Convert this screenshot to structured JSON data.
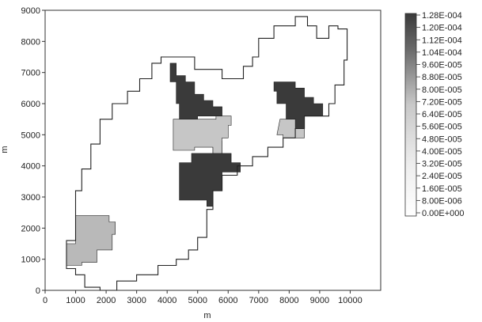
{
  "chart_data": {
    "type": "heatmap",
    "xlabel": "m",
    "ylabel": "m",
    "xlim": [
      0,
      11000
    ],
    "ylim": [
      0,
      9000
    ],
    "x_ticks": [
      "0",
      "1000",
      "2000",
      "3000",
      "4000",
      "5000",
      "6000",
      "7000",
      "8000",
      "9000",
      "10000"
    ],
    "y_ticks": [
      "0",
      "1000",
      "2000",
      "3000",
      "4000",
      "5000",
      "6000",
      "7000",
      "8000",
      "9000"
    ],
    "legend": {
      "placement": "right",
      "labels": [
        "1.28E-004",
        "1.20E-004",
        "1.12E-004",
        "1.04E-004",
        "9.60E-005",
        "8.80E-005",
        "8.00E-005",
        "7.20E-005",
        "6.40E-005",
        "5.60E-005",
        "4.80E-005",
        "4.00E-005",
        "3.20E-005",
        "2.40E-005",
        "1.60E-005",
        "8.00E-006",
        "0.00E+000"
      ]
    },
    "boundary": [
      [
        2100,
        0
      ],
      [
        2350,
        0
      ],
      [
        2350,
        300
      ],
      [
        3000,
        300
      ],
      [
        3000,
        500
      ],
      [
        3700,
        500
      ],
      [
        3700,
        800
      ],
      [
        4300,
        800
      ],
      [
        4300,
        1000
      ],
      [
        4700,
        1000
      ],
      [
        4700,
        1300
      ],
      [
        5000,
        1300
      ],
      [
        5000,
        1700
      ],
      [
        5300,
        1700
      ],
      [
        5300,
        2600
      ],
      [
        5500,
        2600
      ],
      [
        5500,
        3200
      ],
      [
        5800,
        3200
      ],
      [
        5800,
        3700
      ],
      [
        6300,
        3700
      ],
      [
        6300,
        4000
      ],
      [
        6800,
        4000
      ],
      [
        6800,
        4300
      ],
      [
        7300,
        4300
      ],
      [
        7300,
        4600
      ],
      [
        7800,
        4600
      ],
      [
        7800,
        4900
      ],
      [
        8200,
        4900
      ],
      [
        8200,
        5200
      ],
      [
        8500,
        5200
      ],
      [
        8500,
        5600
      ],
      [
        9300,
        5600
      ],
      [
        9300,
        6000
      ],
      [
        9500,
        6000
      ],
      [
        9500,
        6600
      ],
      [
        9800,
        6600
      ],
      [
        9800,
        7400
      ],
      [
        9900,
        7400
      ],
      [
        9900,
        8400
      ],
      [
        9600,
        8400
      ],
      [
        9600,
        8500
      ],
      [
        9300,
        8500
      ],
      [
        9300,
        8100
      ],
      [
        8900,
        8100
      ],
      [
        8900,
        8500
      ],
      [
        8600,
        8500
      ],
      [
        8600,
        8800
      ],
      [
        8200,
        8800
      ],
      [
        8200,
        8500
      ],
      [
        7500,
        8500
      ],
      [
        7500,
        8100
      ],
      [
        7000,
        8100
      ],
      [
        7000,
        7500
      ],
      [
        6800,
        7500
      ],
      [
        6800,
        7200
      ],
      [
        6500,
        7200
      ],
      [
        6500,
        6800
      ],
      [
        5800,
        6800
      ],
      [
        5800,
        7100
      ],
      [
        4900,
        7100
      ],
      [
        4900,
        7500
      ],
      [
        3800,
        7500
      ],
      [
        3800,
        7300
      ],
      [
        3500,
        7300
      ],
      [
        3500,
        6800
      ],
      [
        3100,
        6800
      ],
      [
        3100,
        6400
      ],
      [
        2700,
        6400
      ],
      [
        2700,
        6000
      ],
      [
        2200,
        6000
      ],
      [
        2200,
        5500
      ],
      [
        1800,
        5500
      ],
      [
        1800,
        4700
      ],
      [
        1500,
        4700
      ],
      [
        1500,
        3900
      ],
      [
        1200,
        3900
      ],
      [
        1200,
        3200
      ],
      [
        1000,
        3200
      ],
      [
        1000,
        1600
      ],
      [
        700,
        1600
      ],
      [
        700,
        700
      ],
      [
        1000,
        700
      ],
      [
        1000,
        500
      ],
      [
        1300,
        500
      ],
      [
        1300,
        100
      ],
      [
        1800,
        100
      ],
      [
        1800,
        0
      ]
    ],
    "regions": [
      {
        "value": 0.000128,
        "color": "#3a3a3a",
        "polygon": [
          [
            4100,
            7300
          ],
          [
            4300,
            7300
          ],
          [
            4300,
            6900
          ],
          [
            4600,
            6900
          ],
          [
            4600,
            6700
          ],
          [
            4900,
            6700
          ],
          [
            4900,
            6300
          ],
          [
            5200,
            6300
          ],
          [
            5200,
            6100
          ],
          [
            5500,
            6100
          ],
          [
            5500,
            5900
          ],
          [
            5800,
            5900
          ],
          [
            5800,
            5600
          ],
          [
            5000,
            5600
          ],
          [
            5000,
            5500
          ],
          [
            4400,
            5500
          ],
          [
            4400,
            6000
          ],
          [
            4300,
            6000
          ],
          [
            4300,
            6700
          ],
          [
            4100,
            6700
          ]
        ]
      },
      {
        "value": 0.000128,
        "color": "#3a3a3a",
        "polygon": [
          [
            4400,
            4100
          ],
          [
            4800,
            4100
          ],
          [
            4800,
            4400
          ],
          [
            5500,
            4400
          ],
          [
            5500,
            4800
          ],
          [
            5800,
            4800
          ],
          [
            5800,
            4400
          ],
          [
            6100,
            4400
          ],
          [
            6100,
            4100
          ],
          [
            6400,
            4100
          ],
          [
            6400,
            3800
          ],
          [
            5800,
            3800
          ],
          [
            5800,
            3200
          ],
          [
            5500,
            3200
          ],
          [
            5500,
            2700
          ],
          [
            5300,
            2700
          ],
          [
            5300,
            2900
          ],
          [
            4400,
            2900
          ]
        ]
      },
      {
        "value": 0.000128,
        "color": "#3a3a3a",
        "polygon": [
          [
            7500,
            6700
          ],
          [
            8200,
            6700
          ],
          [
            8200,
            6500
          ],
          [
            8500,
            6500
          ],
          [
            8500,
            6200
          ],
          [
            8800,
            6200
          ],
          [
            8800,
            6000
          ],
          [
            9100,
            6000
          ],
          [
            9100,
            5600
          ],
          [
            8500,
            5600
          ],
          [
            8500,
            5200
          ],
          [
            8200,
            5200
          ],
          [
            8200,
            5500
          ],
          [
            7900,
            5500
          ],
          [
            7900,
            6000
          ],
          [
            7600,
            6000
          ],
          [
            7600,
            6400
          ],
          [
            7500,
            6400
          ]
        ]
      },
      {
        "value": 6.4e-05,
        "color": "#c6c6c6",
        "polygon": [
          [
            4200,
            5500
          ],
          [
            5600,
            5500
          ],
          [
            5600,
            5600
          ],
          [
            6100,
            5600
          ],
          [
            6100,
            5300
          ],
          [
            6000,
            5300
          ],
          [
            6000,
            4900
          ],
          [
            5800,
            4900
          ],
          [
            5800,
            4400
          ],
          [
            5500,
            4400
          ],
          [
            5500,
            4600
          ],
          [
            4900,
            4600
          ],
          [
            4900,
            4500
          ],
          [
            4200,
            4500
          ]
        ]
      },
      {
        "value": 6.4e-05,
        "color": "#c6c6c6",
        "polygon": [
          [
            7700,
            5500
          ],
          [
            8200,
            5500
          ],
          [
            8200,
            5200
          ],
          [
            8500,
            5200
          ],
          [
            8500,
            4900
          ],
          [
            7800,
            4900
          ],
          [
            7800,
            5000
          ],
          [
            7600,
            5000
          ]
        ]
      },
      {
        "value": 6.4e-05,
        "color": "#b9b9b9",
        "polygon": [
          [
            1000,
            2400
          ],
          [
            2100,
            2400
          ],
          [
            2100,
            2200
          ],
          [
            2300,
            2200
          ],
          [
            2300,
            1800
          ],
          [
            2200,
            1800
          ],
          [
            2200,
            1300
          ],
          [
            1700,
            1300
          ],
          [
            1700,
            900
          ],
          [
            1200,
            900
          ],
          [
            1200,
            800
          ],
          [
            700,
            800
          ],
          [
            700,
            1500
          ],
          [
            1000,
            1500
          ]
        ]
      }
    ]
  }
}
